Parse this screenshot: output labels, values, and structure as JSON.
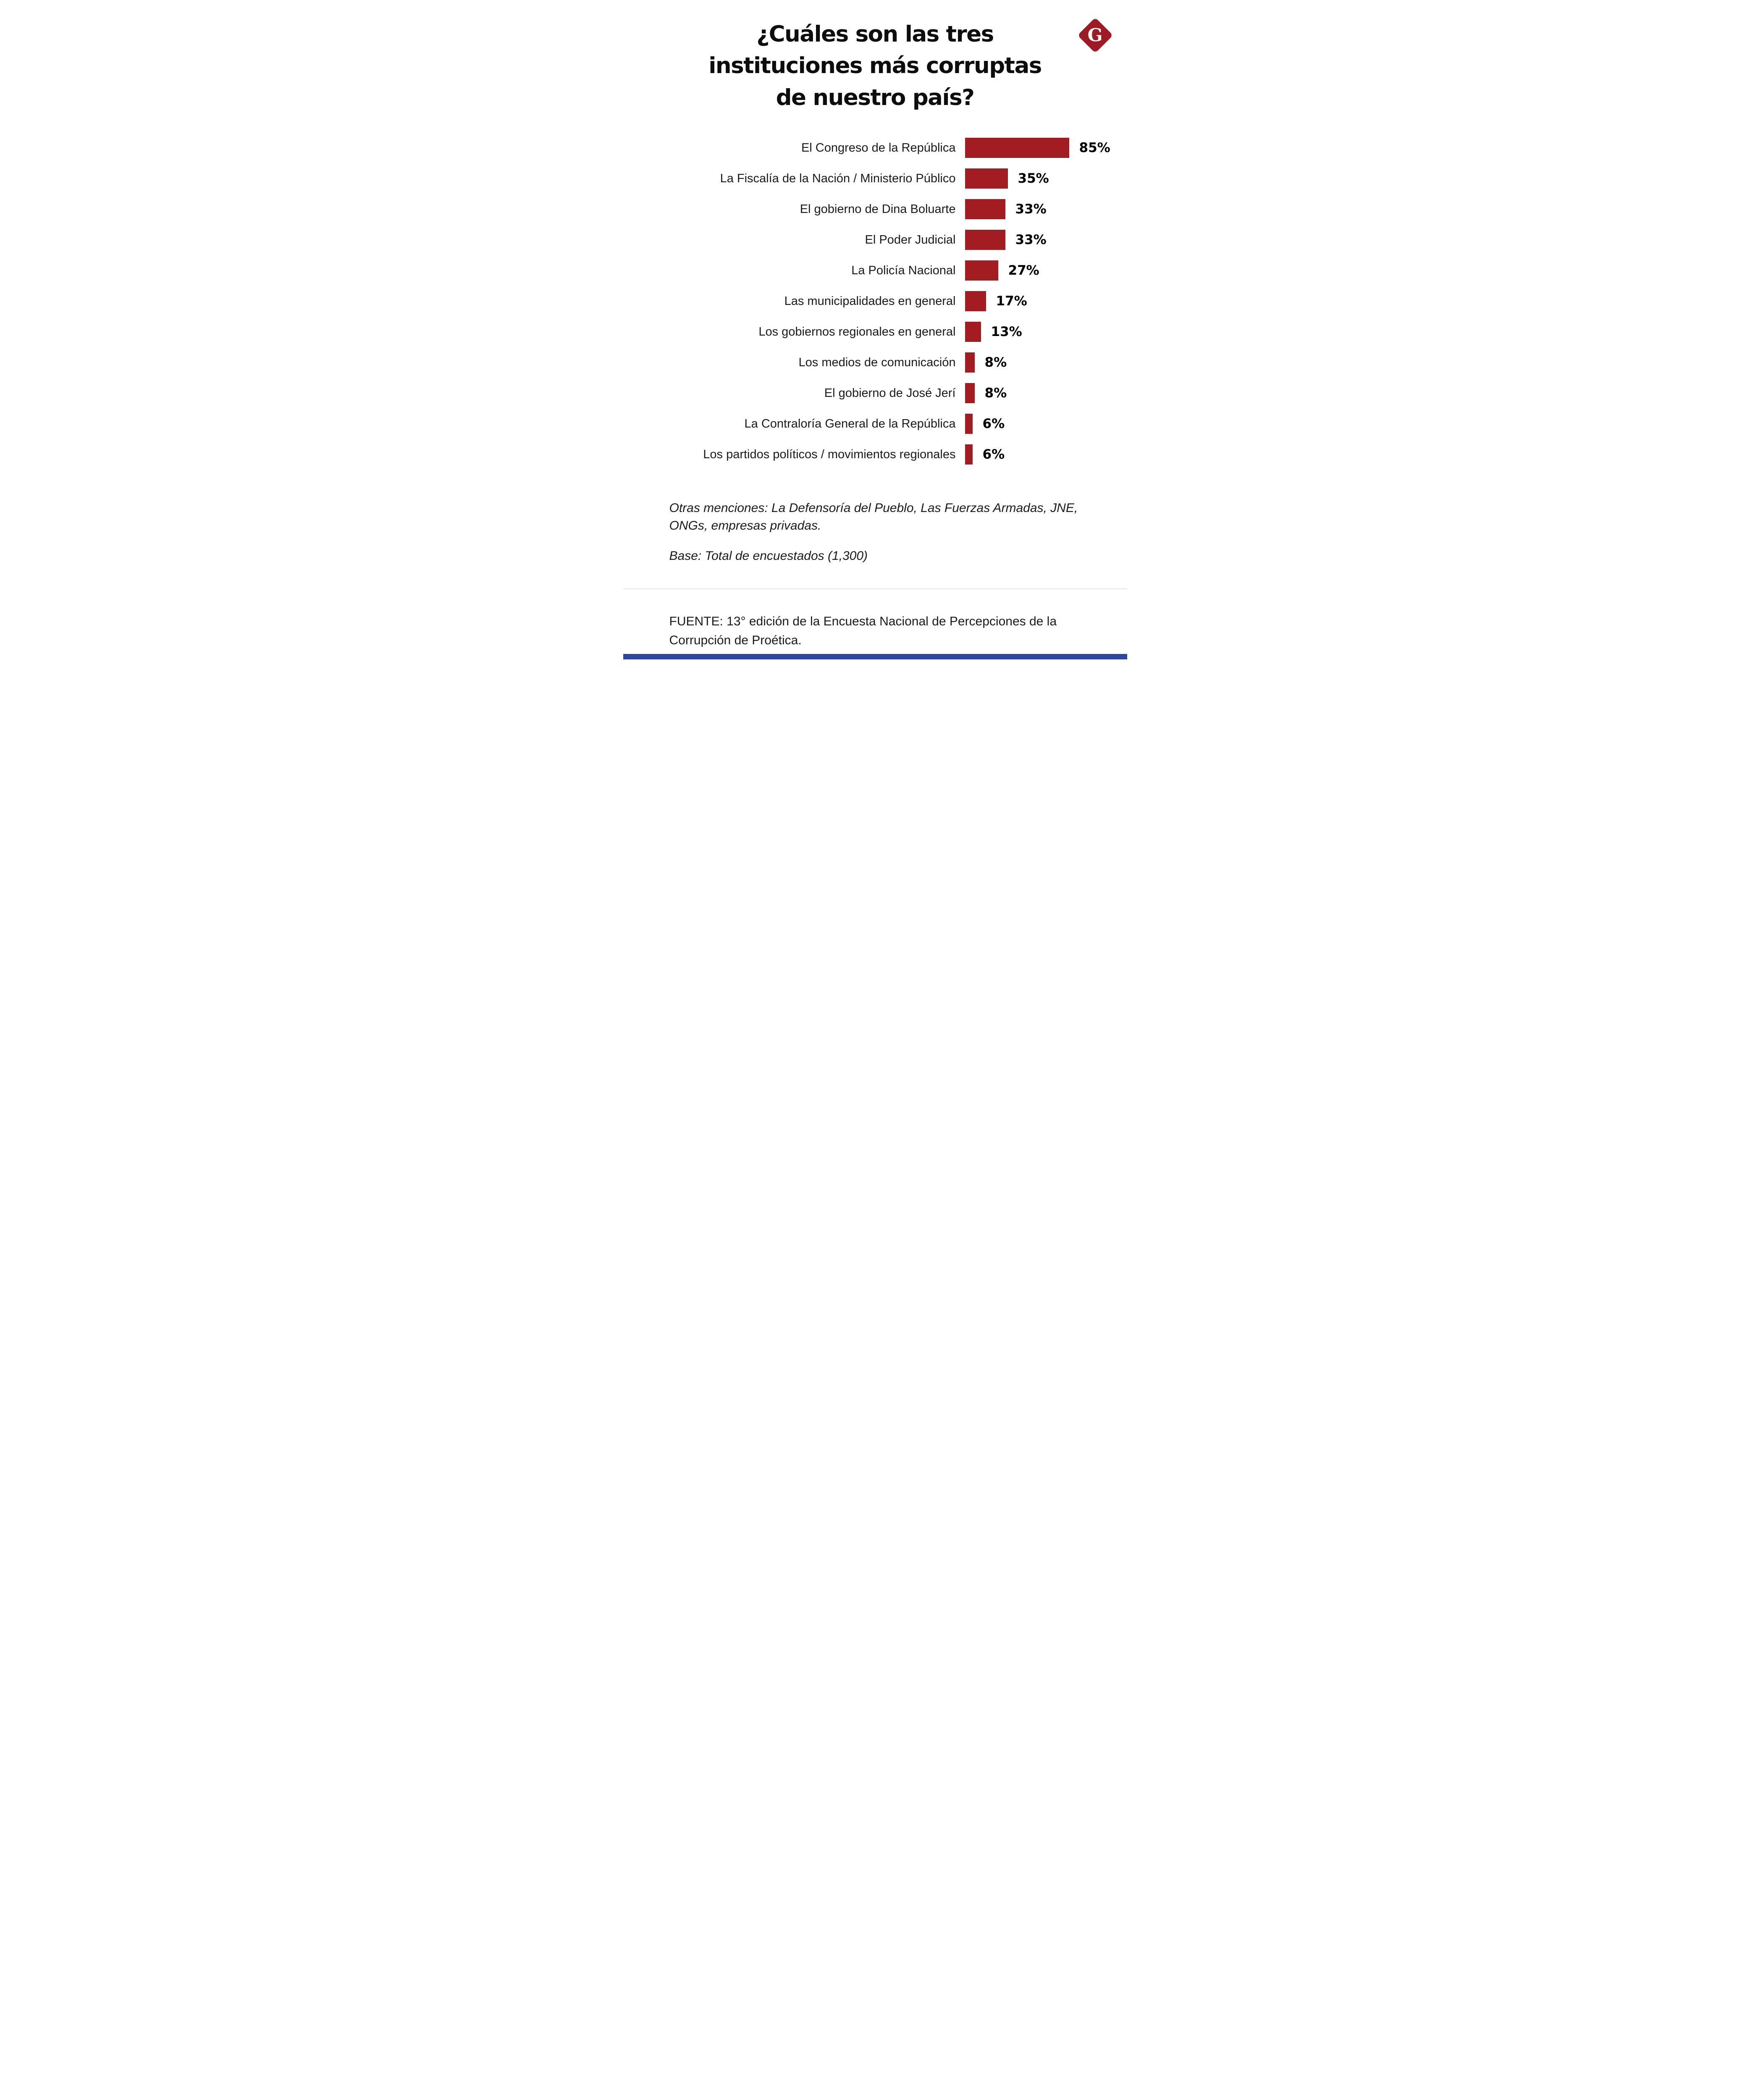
{
  "logo": {
    "letter": "G",
    "name": "gestion-logo",
    "color": "#9e1b26"
  },
  "title": {
    "full": "¿Cuáles son las tres instituciones más corruptas de nuestro país?",
    "lines": [
      "¿Cuáles son las tres",
      "instituciones más corruptas",
      "de nuestro país?"
    ]
  },
  "chart_data": {
    "type": "bar",
    "orientation": "horizontal",
    "title": "¿Cuáles son las tres instituciones más corruptas de nuestro país?",
    "categories": [
      "El Congreso de la República",
      "La Fiscalía de la Nación / Ministerio Público",
      "El gobierno de Dina Boluarte",
      "El Poder Judicial",
      "La Policía Nacional",
      "Las municipalidades en general",
      "Los gobiernos regionales en general",
      "Los medios de comunicación",
      "El gobierno de José Jerí",
      "La Contraloría General de la República",
      "Los partidos políticos / movimientos regionales"
    ],
    "values": [
      85,
      35,
      33,
      33,
      27,
      17,
      13,
      8,
      8,
      6,
      6
    ],
    "value_suffix": "%",
    "bar_color": "#a21c21",
    "xlim": [
      0,
      100
    ],
    "grid": false,
    "legend": false,
    "value_labels_position": "right-of-bar"
  },
  "notes": {
    "other_mentions": "Otras menciones: La Defensoría del Pueblo, Las Fuerzas Armadas, JNE, ONGs, empresas privadas.",
    "base": "Base: Total de encuestados (1,300)"
  },
  "footer": {
    "source": "FUENTE: 13° edición de la Encuesta Nacional de Percepciones de la Corrupción de Proética.",
    "accent_color": "#2b479f"
  }
}
